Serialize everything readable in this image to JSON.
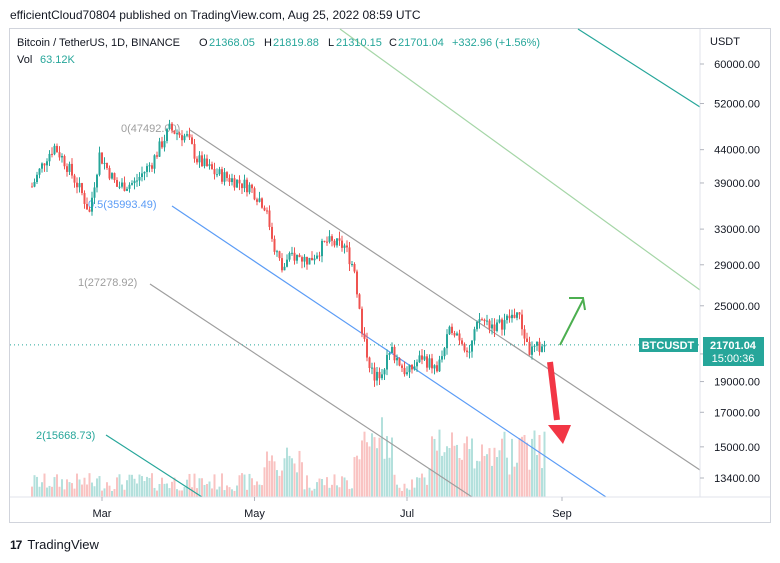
{
  "header": {
    "publish_line": "efficientCloud70804 published on TradingView.com, Aug 25, 2022 08:59 UTC"
  },
  "legend": {
    "symbol": "Bitcoin / TetherUS, 1D, BINANCE",
    "o_label": "O",
    "o_value": "21368.05",
    "h_label": "H",
    "h_value": "21819.88",
    "l_label": "L",
    "l_value": "21310.15",
    "c_label": "C",
    "c_value": "21701.04",
    "change": "+332.96 (+1.56%)",
    "vol_label": "Vol",
    "vol_value": "63.12K"
  },
  "footer": {
    "brand": "TradingView",
    "logo": "17"
  },
  "colors": {
    "up": "#26a69a",
    "down": "#ef5350",
    "price_label": "#26a69a",
    "fib_gray": "#9e9e9e",
    "fib_blue": "#5b9cf6",
    "fib_teal": "#26a69a",
    "channel_green": "#a5d6a7",
    "arrow_up": "#4caf50",
    "arrow_down": "#f23645"
  },
  "chart_data": {
    "type": "candlestick",
    "symbol": "BTCUSDT",
    "currency": "USDT",
    "y_scale": "log",
    "ylim": [
      12500,
      70000
    ],
    "y_ticks": [
      "60000.00",
      "52000.00",
      "44000.00",
      "39000.00",
      "33000.00",
      "29000.00",
      "25000.00",
      "21000.00",
      "19000.00",
      "17000.00",
      "15000.00",
      "13400.00"
    ],
    "x_ticks": [
      "Mar",
      "May",
      "Jul",
      "Sep"
    ],
    "last_price": "21701.04",
    "countdown": "15:00:36",
    "price_label": "BTCUSDT",
    "price_path": [
      [
        "2022-02-01",
        38500
      ],
      [
        "2022-02-07",
        43000
      ],
      [
        "2022-02-10",
        44500
      ],
      [
        "2022-02-14",
        42200
      ],
      [
        "2022-02-21",
        37500
      ],
      [
        "2022-02-24",
        35000
      ],
      [
        "2022-02-28",
        43200
      ],
      [
        "2022-03-07",
        38500
      ],
      [
        "2022-03-14",
        39000
      ],
      [
        "2022-03-21",
        42000
      ],
      [
        "2022-03-28",
        47400
      ],
      [
        "2022-04-04",
        46000
      ],
      [
        "2022-04-08",
        42500
      ],
      [
        "2022-04-15",
        40500
      ],
      [
        "2022-04-22",
        39500
      ],
      [
        "2022-04-29",
        38500
      ],
      [
        "2022-05-05",
        36000
      ],
      [
        "2022-05-09",
        31000
      ],
      [
        "2022-05-12",
        28500
      ],
      [
        "2022-05-16",
        30000
      ],
      [
        "2022-05-23",
        29500
      ],
      [
        "2022-05-30",
        31500
      ],
      [
        "2022-06-06",
        31000
      ],
      [
        "2022-06-10",
        28500
      ],
      [
        "2022-06-13",
        22500
      ],
      [
        "2022-06-18",
        19000
      ],
      [
        "2022-06-25",
        21200
      ],
      [
        "2022-07-01",
        19500
      ],
      [
        "2022-07-07",
        20800
      ],
      [
        "2022-07-13",
        19800
      ],
      [
        "2022-07-19",
        23200
      ],
      [
        "2022-07-26",
        21200
      ],
      [
        "2022-07-30",
        23800
      ],
      [
        "2022-08-06",
        23200
      ],
      [
        "2022-08-14",
        24400
      ],
      [
        "2022-08-19",
        21200
      ],
      [
        "2022-08-25",
        21701
      ]
    ],
    "fib_levels": [
      {
        "label": "0(47492.00)",
        "value": 47492.0
      },
      {
        "label": "0.5(35993.49)",
        "value": 35993.49
      },
      {
        "label": "1(27278.92)",
        "value": 27278.92
      },
      {
        "label": "2(15668.73)",
        "value": 15668.73
      }
    ],
    "annotations": [
      "arrow-up-green",
      "arrow-down-red"
    ],
    "grid": false,
    "volume_series": true
  }
}
